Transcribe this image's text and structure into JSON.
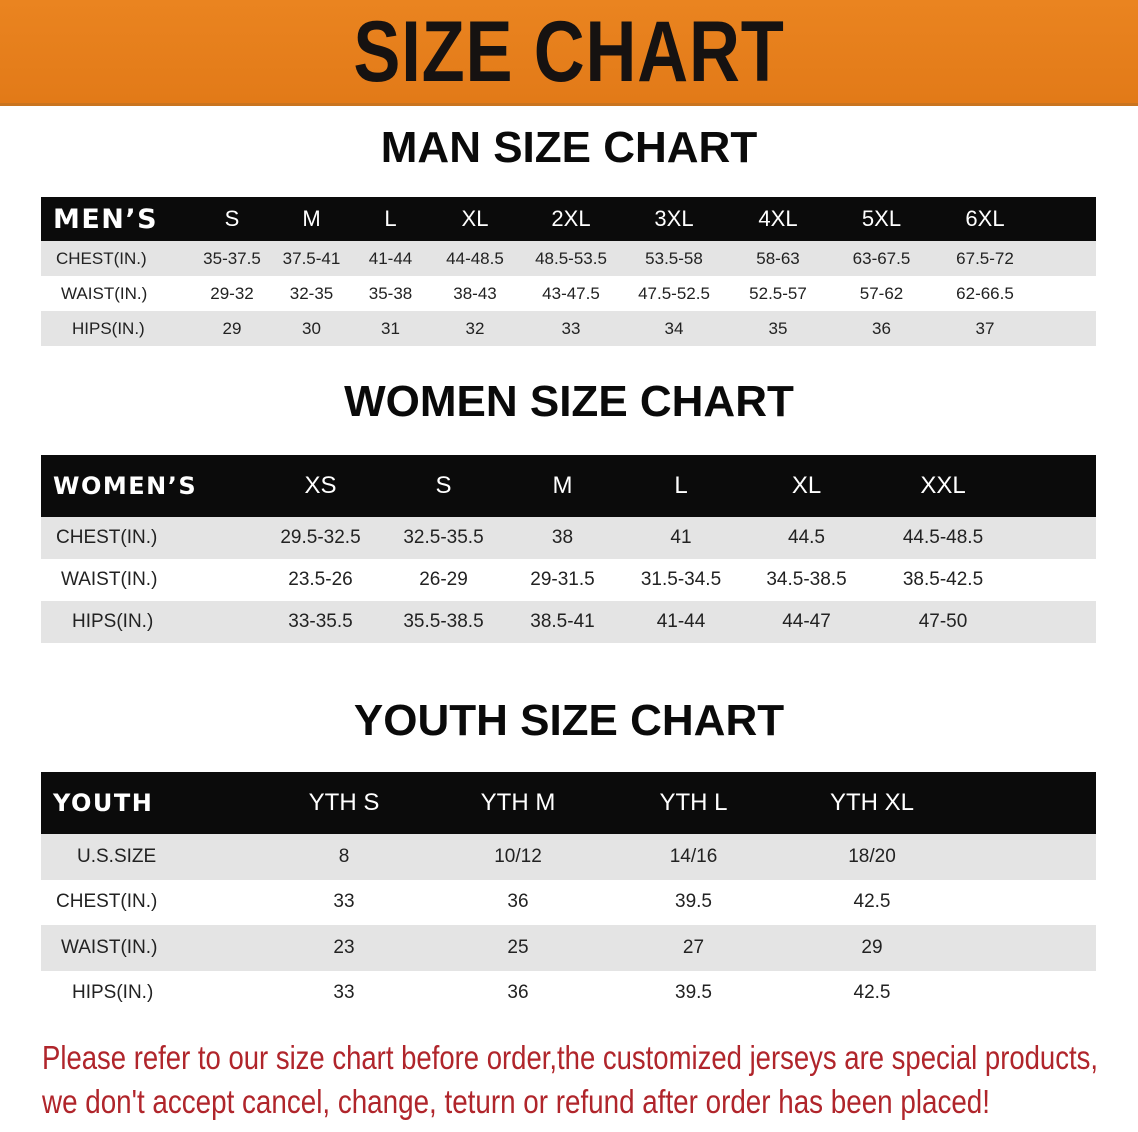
{
  "banner_title": "SIZE CHART",
  "accent_color": "#e8801e",
  "notice_color": "#b0252b",
  "men": {
    "title": "MAN SIZE CHART",
    "header": [
      "MEN’S",
      "S",
      "M",
      "L",
      "XL",
      "2XL",
      "3XL",
      "4XL",
      "5XL",
      "6XL"
    ],
    "rows": [
      [
        "CHEST(IN.)",
        "35-37.5",
        "37.5-41",
        "41-44",
        "44-48.5",
        "48.5-53.5",
        "53.5-58",
        "58-63",
        "63-67.5",
        "67.5-72"
      ],
      [
        "WAIST(IN.)",
        "29-32",
        "32-35",
        "35-38",
        "38-43",
        "43-47.5",
        "47.5-52.5",
        "52.5-57",
        "57-62",
        "62-66.5"
      ],
      [
        "HIPS(IN.)",
        "29",
        "30",
        "31",
        "32",
        "33",
        "34",
        "35",
        "36",
        "37"
      ]
    ]
  },
  "women": {
    "title": "WOMEN SIZE CHART",
    "header": [
      "WOMEN’S",
      "XS",
      "S",
      "M",
      "L",
      "XL",
      "XXL"
    ],
    "rows": [
      [
        "CHEST(IN.)",
        "29.5-32.5",
        "32.5-35.5",
        "38",
        "41",
        "44.5",
        "44.5-48.5"
      ],
      [
        "WAIST(IN.)",
        "23.5-26",
        "26-29",
        "29-31.5",
        "31.5-34.5",
        "34.5-38.5",
        "38.5-42.5"
      ],
      [
        "HIPS(IN.)",
        "33-35.5",
        "35.5-38.5",
        "38.5-41",
        "41-44",
        "44-47",
        "47-50"
      ]
    ]
  },
  "youth": {
    "title": "YOUTH SIZE CHART",
    "header": [
      "YOUTH",
      "YTH S",
      "YTH M",
      "YTH L",
      "YTH XL"
    ],
    "rows": [
      [
        "U.S.SIZE",
        "8",
        "10/12",
        "14/16",
        "18/20"
      ],
      [
        "CHEST(IN.)",
        "33",
        "36",
        "39.5",
        "42.5"
      ],
      [
        "WAIST(IN.)",
        "23",
        "25",
        "27",
        "29"
      ],
      [
        "HIPS(IN.)",
        "33",
        "36",
        "39.5",
        "42.5"
      ]
    ]
  },
  "notice": {
    "line1": "Please refer to our size chart before order,the customized jerseys are special products,",
    "line2": "we don't accept cancel, change, teturn or refund after order has been placed!"
  }
}
